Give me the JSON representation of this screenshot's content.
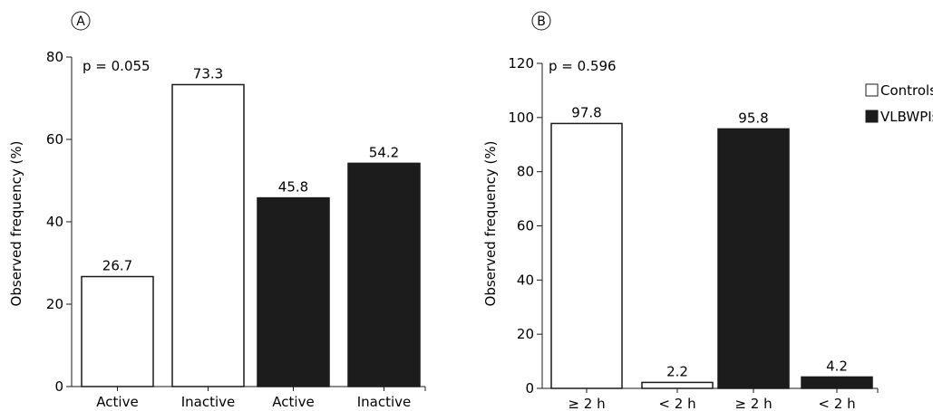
{
  "colors": {
    "controls": "#ffffff",
    "vlbwpis": "#1c1c1c",
    "stroke": "#1a1a1a"
  },
  "legend": {
    "items": [
      {
        "name": "Controls",
        "color": "#ffffff"
      },
      {
        "name": "VLBWPIs",
        "color": "#1c1c1c"
      }
    ],
    "placement": "top-right"
  },
  "chart_data": [
    {
      "type": "bar",
      "panel_label": "A",
      "annotation": "p = 0.055",
      "ylabel": "Observed frequency (%)",
      "ylim": [
        0,
        80
      ],
      "yticks": [
        "0",
        "20",
        "40",
        "60",
        "80"
      ],
      "grid": false,
      "categories": [
        "Active",
        "Inactive",
        "Active",
        "Inactive"
      ],
      "values": [
        26.7,
        73.3,
        45.8,
        54.2
      ],
      "value_labels": [
        "26.7",
        "73.3",
        "45.8",
        "54.2"
      ],
      "groups": [
        "Controls",
        "Controls",
        "VLBWPIs",
        "VLBWPIs"
      ]
    },
    {
      "type": "bar",
      "panel_label": "B",
      "annotation": "p = 0.596",
      "ylabel": "Observed frequency (%)",
      "ylim": [
        0,
        120
      ],
      "yticks": [
        "0",
        "20",
        "40",
        "60",
        "80",
        "100",
        "120"
      ],
      "grid": false,
      "categories": [
        "≥ 2 h",
        "< 2 h",
        "≥ 2 h",
        "< 2 h"
      ],
      "values": [
        97.8,
        2.2,
        95.8,
        4.2
      ],
      "value_labels": [
        "97.8",
        "2.2",
        "95.8",
        "4.2"
      ],
      "groups": [
        "Controls",
        "Controls",
        "VLBWPIs",
        "VLBWPIs"
      ]
    }
  ]
}
